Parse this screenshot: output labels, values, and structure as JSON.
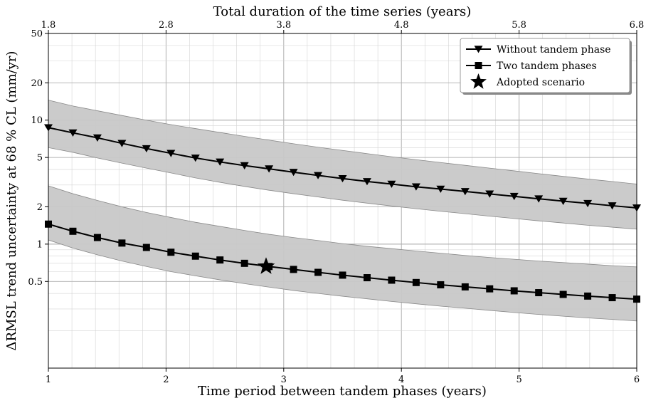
{
  "chart_data": {
    "type": "line",
    "xlabel": "Time period between tandem phases (years)",
    "ylabel": "ΔRMSL trend uncertainty at 68 % CL (mm/yr)",
    "top_xlabel": "Total duration of the time series (years)",
    "xlim": [
      1,
      6
    ],
    "ylim": [
      0.1,
      50
    ],
    "yscale": "log",
    "x_ticks": [
      "1",
      "2",
      "3",
      "4",
      "5",
      "6"
    ],
    "top_ticks": [
      "1.8",
      "2.8",
      "3.8",
      "4.8",
      "5.8",
      "6.8"
    ],
    "y_ticks": [
      "0.5",
      "1",
      "2",
      "5",
      "10",
      "20",
      "50"
    ],
    "grid": true,
    "legend_position": "top-right",
    "x": [
      1.0,
      1.2083,
      1.4167,
      1.625,
      1.8333,
      2.0417,
      2.25,
      2.4583,
      2.6667,
      2.875,
      3.0833,
      3.2917,
      3.5,
      3.7083,
      3.9167,
      4.125,
      4.3333,
      4.5417,
      4.75,
      4.9583,
      5.1667,
      5.375,
      5.5833,
      5.7917,
      6.0
    ],
    "series": [
      {
        "name": "Without tandem phase",
        "marker": "triangle-down",
        "values": [
          8.7,
          7.9,
          7.2,
          6.5,
          5.9,
          5.4,
          4.95,
          4.6,
          4.3,
          4.05,
          3.8,
          3.58,
          3.38,
          3.2,
          3.05,
          2.9,
          2.78,
          2.66,
          2.54,
          2.43,
          2.32,
          2.22,
          2.13,
          2.04,
          1.96
        ],
        "band_upper": [
          14.5,
          13.0,
          11.9,
          10.9,
          10.0,
          9.2,
          8.55,
          7.95,
          7.4,
          6.9,
          6.45,
          6.05,
          5.7,
          5.37,
          5.07,
          4.8,
          4.55,
          4.32,
          4.1,
          3.9,
          3.7,
          3.52,
          3.35,
          3.2,
          3.05
        ],
        "band_lower": [
          6.0,
          5.5,
          4.95,
          4.5,
          4.1,
          3.75,
          3.42,
          3.15,
          2.92,
          2.72,
          2.55,
          2.4,
          2.26,
          2.14,
          2.03,
          1.93,
          1.84,
          1.76,
          1.68,
          1.61,
          1.54,
          1.48,
          1.42,
          1.37,
          1.32
        ]
      },
      {
        "name": "Two tandem phases",
        "marker": "square",
        "values": [
          1.45,
          1.27,
          1.13,
          1.02,
          0.94,
          0.86,
          0.8,
          0.745,
          0.7,
          0.66,
          0.625,
          0.592,
          0.562,
          0.536,
          0.512,
          0.49,
          0.47,
          0.452,
          0.436,
          0.42,
          0.406,
          0.393,
          0.381,
          0.37,
          0.36
        ],
        "band_upper": [
          2.95,
          2.55,
          2.25,
          2.0,
          1.8,
          1.64,
          1.5,
          1.39,
          1.29,
          1.2,
          1.13,
          1.07,
          1.01,
          0.96,
          0.92,
          0.88,
          0.845,
          0.81,
          0.78,
          0.755,
          0.73,
          0.71,
          0.69,
          0.67,
          0.655
        ],
        "band_lower": [
          1.08,
          0.93,
          0.82,
          0.73,
          0.66,
          0.6,
          0.555,
          0.515,
          0.48,
          0.45,
          0.423,
          0.4,
          0.38,
          0.362,
          0.345,
          0.33,
          0.316,
          0.304,
          0.292,
          0.281,
          0.271,
          0.262,
          0.254,
          0.247,
          0.24
        ]
      }
    ],
    "highlight": {
      "name": "Adopted scenario",
      "marker": "star",
      "x": 2.85,
      "y": 0.66
    }
  },
  "legend": {
    "items": [
      {
        "label": "Without tandem phase",
        "marker": "triangle-down"
      },
      {
        "label": "Two tandem phases",
        "marker": "square"
      },
      {
        "label": "Adopted scenario",
        "marker": "star"
      }
    ]
  },
  "colors": {
    "line": "#000000",
    "band": "#c8c8c8",
    "grid": "#d4d4d4",
    "grid_major": "#b0b0b0"
  }
}
